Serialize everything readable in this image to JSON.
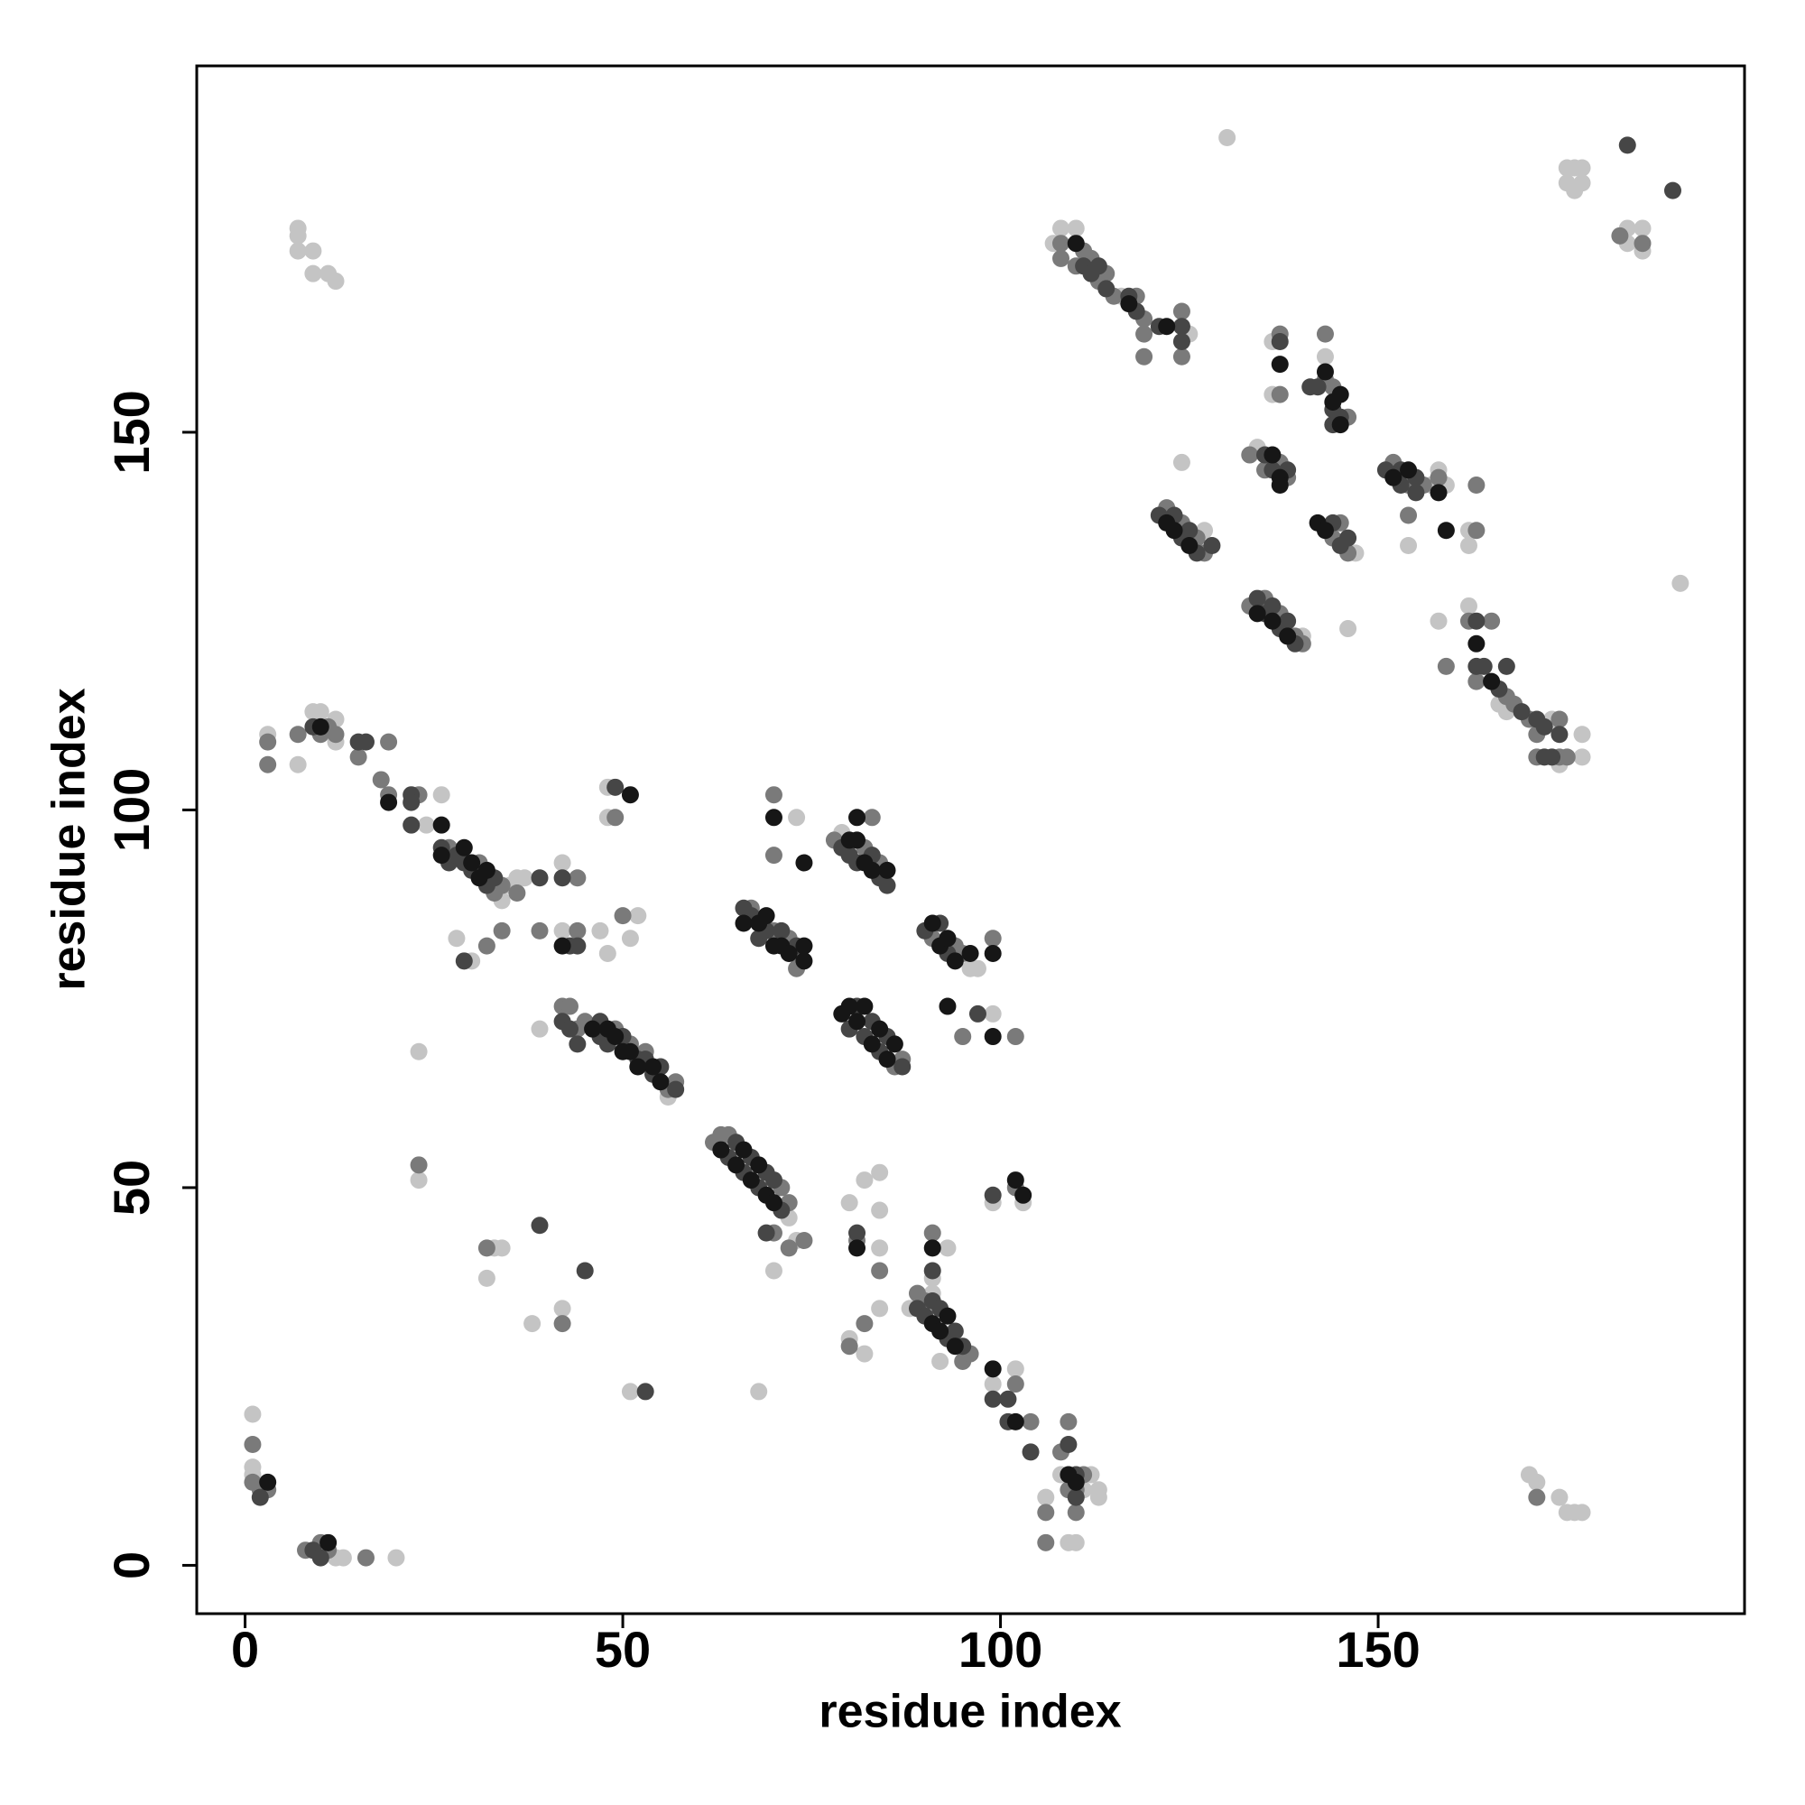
{
  "chart_data": {
    "type": "scatter",
    "xlabel": "residue index",
    "ylabel": "residue index",
    "xlim": [
      -6.4,
      198.5
    ],
    "ylim": [
      -6.4,
      198.5
    ],
    "xticks": [
      0,
      50,
      100,
      150
    ],
    "yticks": [
      0,
      50,
      100,
      150
    ],
    "series": [
      {
        "color": "#c4c4c4",
        "x": [
          1,
          1,
          1,
          12,
          13,
          20,
          7,
          7,
          7,
          9,
          9,
          11,
          12,
          3,
          7,
          9,
          10,
          12,
          12,
          26,
          24,
          34,
          35,
          36,
          37,
          42,
          28,
          30,
          42,
          47,
          48,
          51,
          52,
          23,
          23,
          33,
          34,
          32,
          38,
          42,
          51,
          68,
          39,
          56,
          48,
          48,
          72,
          73,
          70,
          73,
          79,
          96,
          97,
          99,
          88,
          91,
          92,
          99,
          102,
          93,
          91,
          80,
          82,
          84,
          84,
          84,
          84,
          82,
          80,
          99,
          103,
          108,
          112,
          111,
          113,
          113,
          106,
          109,
          110,
          170,
          171,
          174,
          175,
          176,
          177,
          130,
          175,
          176,
          177,
          175,
          176,
          177,
          183,
          185,
          185,
          183,
          190,
          107,
          108,
          110,
          116,
          125,
          136,
          136,
          143,
          134,
          124,
          127,
          147,
          140,
          146,
          157,
          158,
          159,
          154,
          162,
          162,
          158,
          162,
          166,
          167,
          173,
          174,
          177,
          177
        ],
        "y": [
          20,
          13,
          12,
          1,
          1,
          1,
          177,
          176,
          174,
          174,
          171,
          171,
          170,
          110,
          106,
          113,
          113,
          112,
          109,
          102,
          98,
          88,
          90,
          91,
          91,
          93,
          83,
          80,
          84,
          84,
          81,
          83,
          86,
          68,
          51,
          42,
          42,
          38,
          32,
          34,
          23,
          23,
          71,
          62,
          103,
          99,
          46,
          43,
          39,
          99,
          97,
          79,
          79,
          73,
          34,
          36,
          27,
          24,
          26,
          42,
          38,
          48,
          51,
          52,
          47,
          42,
          34,
          28,
          30,
          48,
          48,
          12,
          12,
          10,
          10,
          9,
          9,
          3,
          3,
          12,
          11,
          9,
          7,
          7,
          7,
          189,
          185,
          185,
          185,
          183,
          182,
          183,
          177,
          177,
          174,
          175,
          130,
          175,
          177,
          177,
          168,
          163,
          162,
          155,
          160,
          148,
          146,
          137,
          134,
          123,
          124,
          143,
          145,
          143,
          135,
          137,
          135,
          125,
          127,
          114,
          113,
          112,
          106,
          107,
          110
        ]
      },
      {
        "color": "#7a7a7a",
        "x": [
          1,
          1,
          2,
          3,
          8,
          10,
          11,
          16,
          3,
          3,
          7,
          10,
          11,
          12,
          15,
          19,
          18,
          19,
          23,
          27,
          31,
          33,
          34,
          36,
          44,
          32,
          34,
          39,
          44,
          50,
          23,
          32,
          42,
          42,
          43,
          44,
          45,
          49,
          51,
          53,
          56,
          57,
          49,
          62,
          63,
          64,
          71,
          72,
          70,
          72,
          74,
          67,
          70,
          72,
          73,
          73,
          70,
          70,
          78,
          82,
          84,
          83,
          86,
          87,
          91,
          94,
          95,
          99,
          95,
          102,
          89,
          90,
          95,
          96,
          102,
          104,
          91,
          81,
          84,
          80,
          82,
          102,
          109,
          108,
          110,
          111,
          106,
          110,
          106,
          109,
          171,
          182,
          185,
          108,
          108,
          110,
          111,
          112,
          113,
          114,
          115,
          118,
          119,
          119,
          124,
          124,
          119,
          137,
          137,
          143,
          143,
          144,
          146,
          133,
          135,
          137,
          138,
          122,
          124,
          126,
          127,
          144,
          145,
          146,
          133,
          135,
          137,
          139,
          140,
          152,
          154,
          156,
          158,
          163,
          154,
          163,
          162,
          165,
          159,
          163,
          167,
          168,
          170,
          171,
          174,
          171,
          174,
          175
        ],
        "y": [
          16,
          11,
          10,
          10,
          2,
          3,
          2,
          1,
          109,
          106,
          110,
          110,
          111,
          110,
          107,
          109,
          104,
          102,
          102,
          95,
          93,
          89,
          90,
          89,
          91,
          82,
          84,
          84,
          84,
          86,
          53,
          42,
          32,
          74,
          74,
          71,
          72,
          71,
          69,
          68,
          63,
          64,
          99,
          56,
          57,
          57,
          50,
          48,
          44,
          42,
          43,
          87,
          84,
          83,
          81,
          79,
          102,
          94,
          96,
          95,
          93,
          99,
          66,
          67,
          83,
          82,
          81,
          83,
          70,
          70,
          36,
          35,
          27,
          28,
          24,
          19,
          44,
          43,
          39,
          29,
          32,
          50,
          19,
          15,
          10,
          12,
          7,
          7,
          3,
          10,
          9,
          176,
          175,
          175,
          173,
          172,
          174,
          173,
          170,
          171,
          168,
          168,
          165,
          163,
          166,
          160,
          160,
          163,
          155,
          163,
          157,
          156,
          152,
          147,
          145,
          146,
          144,
          140,
          138,
          136,
          134,
          136,
          138,
          134,
          127,
          128,
          126,
          123,
          122,
          146,
          143,
          143,
          144,
          143,
          139,
          137,
          125,
          125,
          119,
          117,
          115,
          114,
          112,
          110,
          112,
          107,
          107,
          107
        ]
      },
      {
        "color": "#464646",
        "x": [
          2,
          9,
          10,
          9,
          15,
          16,
          22,
          22,
          22,
          26,
          27,
          28,
          29,
          30,
          32,
          33,
          39,
          42,
          29,
          43,
          44,
          39,
          45,
          53,
          42,
          43,
          44,
          47,
          47,
          48,
          50,
          52,
          53,
          54,
          55,
          57,
          49,
          64,
          65,
          66,
          67,
          68,
          69,
          70,
          71,
          69,
          66,
          67,
          68,
          69,
          71,
          73,
          79,
          80,
          81,
          83,
          84,
          85,
          80,
          81,
          82,
          83,
          84,
          85,
          87,
          90,
          92,
          93,
          97,
          89,
          90,
          91,
          92,
          93,
          94,
          95,
          99,
          101,
          101,
          104,
          91,
          81,
          99,
          109,
          110,
          110,
          111,
          112,
          113,
          114,
          117,
          118,
          121,
          124,
          124,
          137,
          142,
          141,
          144,
          145,
          144,
          135,
          136,
          138,
          121,
          123,
          124,
          125,
          126,
          128,
          144,
          145,
          146,
          134,
          135,
          136,
          137,
          138,
          139,
          151,
          153,
          153,
          155,
          155,
          163,
          163,
          164,
          167,
          166,
          169,
          171,
          172,
          174,
          172,
          173,
          183,
          189
        ],
        "y": [
          9,
          2,
          1,
          111,
          109,
          109,
          102,
          101,
          98,
          95,
          93,
          94,
          93,
          92,
          90,
          91,
          91,
          91,
          80,
          82,
          82,
          45,
          39,
          23,
          72,
          71,
          69,
          72,
          70,
          69,
          70,
          67,
          67,
          65,
          66,
          63,
          103,
          54,
          56,
          52,
          54,
          50,
          52,
          51,
          47,
          44,
          87,
          86,
          83,
          84,
          84,
          82,
          95,
          94,
          93,
          94,
          91,
          90,
          71,
          74,
          70,
          72,
          68,
          70,
          66,
          84,
          85,
          81,
          73,
          34,
          33,
          35,
          34,
          30,
          31,
          29,
          22,
          22,
          19,
          15,
          39,
          44,
          49,
          16,
          12,
          9,
          172,
          171,
          172,
          169,
          168,
          166,
          164,
          164,
          162,
          162,
          156,
          156,
          153,
          152,
          151,
          147,
          145,
          145,
          139,
          139,
          136,
          137,
          134,
          135,
          138,
          135,
          136,
          128,
          126,
          127,
          124,
          125,
          122,
          145,
          145,
          143,
          144,
          142,
          125,
          119,
          119,
          119,
          116,
          113,
          112,
          111,
          110,
          107,
          107,
          188,
          182
        ]
      },
      {
        "color": "#161616",
        "x": [
          3,
          11,
          10,
          19,
          26,
          26,
          29,
          30,
          31,
          32,
          42,
          46,
          48,
          49,
          50,
          51,
          52,
          54,
          55,
          51,
          63,
          65,
          66,
          67,
          68,
          69,
          70,
          66,
          68,
          69,
          70,
          71,
          72,
          74,
          74,
          70,
          74,
          80,
          81,
          82,
          83,
          85,
          81,
          79,
          80,
          81,
          82,
          83,
          84,
          85,
          86,
          91,
          92,
          93,
          94,
          96,
          99,
          93,
          99,
          91,
          92,
          93,
          94,
          99,
          102,
          91,
          81,
          102,
          103,
          109,
          110,
          110,
          117,
          122,
          137,
          143,
          144,
          145,
          145,
          136,
          137,
          137,
          122,
          123,
          125,
          142,
          143,
          134,
          136,
          138,
          152,
          154,
          158,
          159,
          163,
          165
        ],
        "y": [
          11,
          3,
          111,
          101,
          98,
          94,
          95,
          93,
          91,
          92,
          82,
          71,
          71,
          70,
          68,
          68,
          66,
          66,
          64,
          102,
          55,
          53,
          55,
          51,
          53,
          49,
          48,
          85,
          85,
          86,
          82,
          82,
          81,
          82,
          80,
          99,
          93,
          96,
          96,
          93,
          92,
          92,
          99,
          73,
          74,
          72,
          74,
          69,
          71,
          67,
          69,
          85,
          82,
          83,
          80,
          81,
          81,
          74,
          70,
          32,
          31,
          33,
          29,
          26,
          19,
          42,
          42,
          51,
          49,
          12,
          11,
          175,
          167,
          164,
          159,
          158,
          154,
          155,
          151,
          147,
          144,
          143,
          138,
          137,
          135,
          138,
          137,
          126,
          125,
          123,
          144,
          145,
          142,
          137,
          122,
          117
        ]
      }
    ]
  }
}
